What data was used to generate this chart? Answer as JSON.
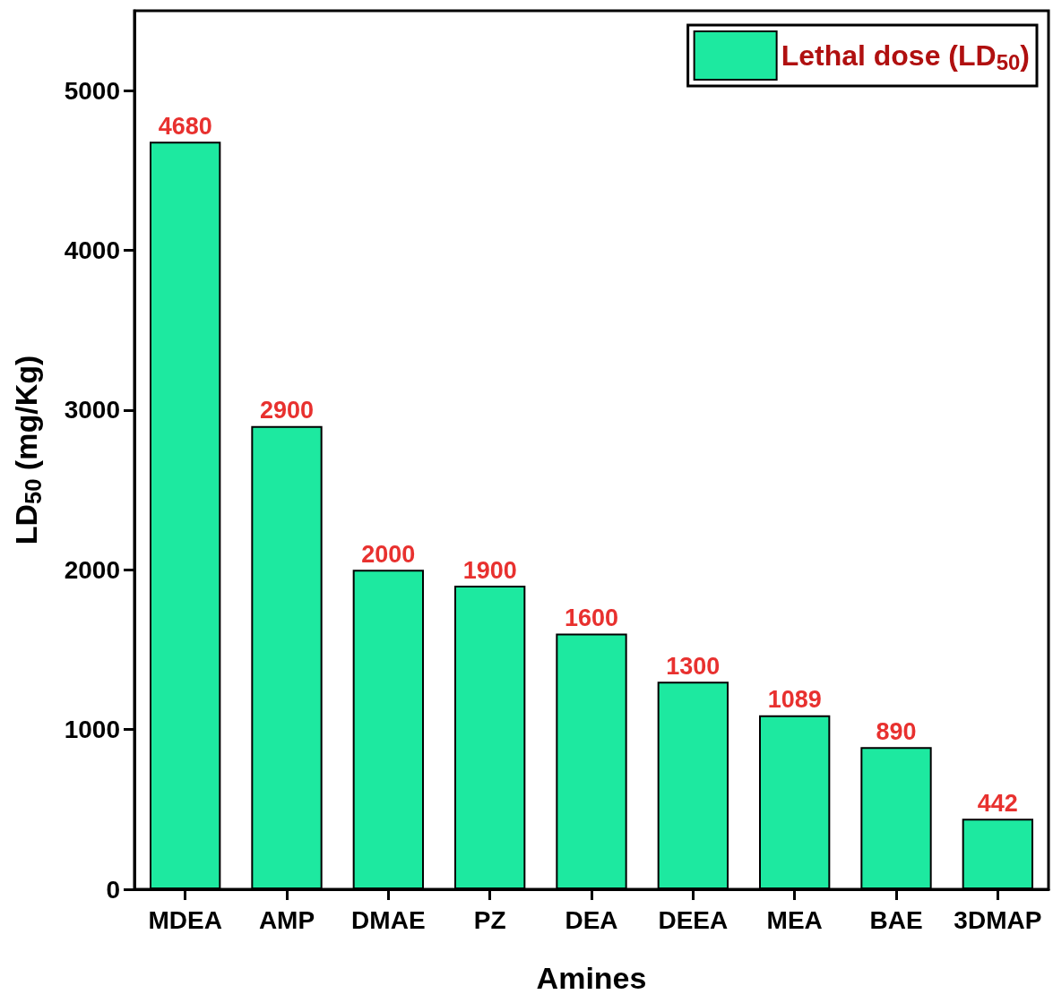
{
  "chart_data": {
    "type": "bar",
    "xlabel": "Amines",
    "ylabel": "LD$_{50}$ (mg/Kg)",
    "categories": [
      "MDEA",
      "AMP",
      "DMAE",
      "PZ",
      "DEA",
      "DEEA",
      "MEA",
      "BAE",
      "3DMAP"
    ],
    "series": [
      {
        "name": "Lethal dose (LD$_{50}$)",
        "color": "#1de9a0",
        "values": [
          4680,
          2900,
          2000,
          1900,
          1600,
          1300,
          1089,
          890,
          442
        ]
      }
    ],
    "ylim": [
      0,
      5500
    ],
    "yticks": [
      0,
      1000,
      2000,
      3000,
      4000,
      5000
    ],
    "data_labels": true,
    "legend": "top right",
    "grid": false
  }
}
